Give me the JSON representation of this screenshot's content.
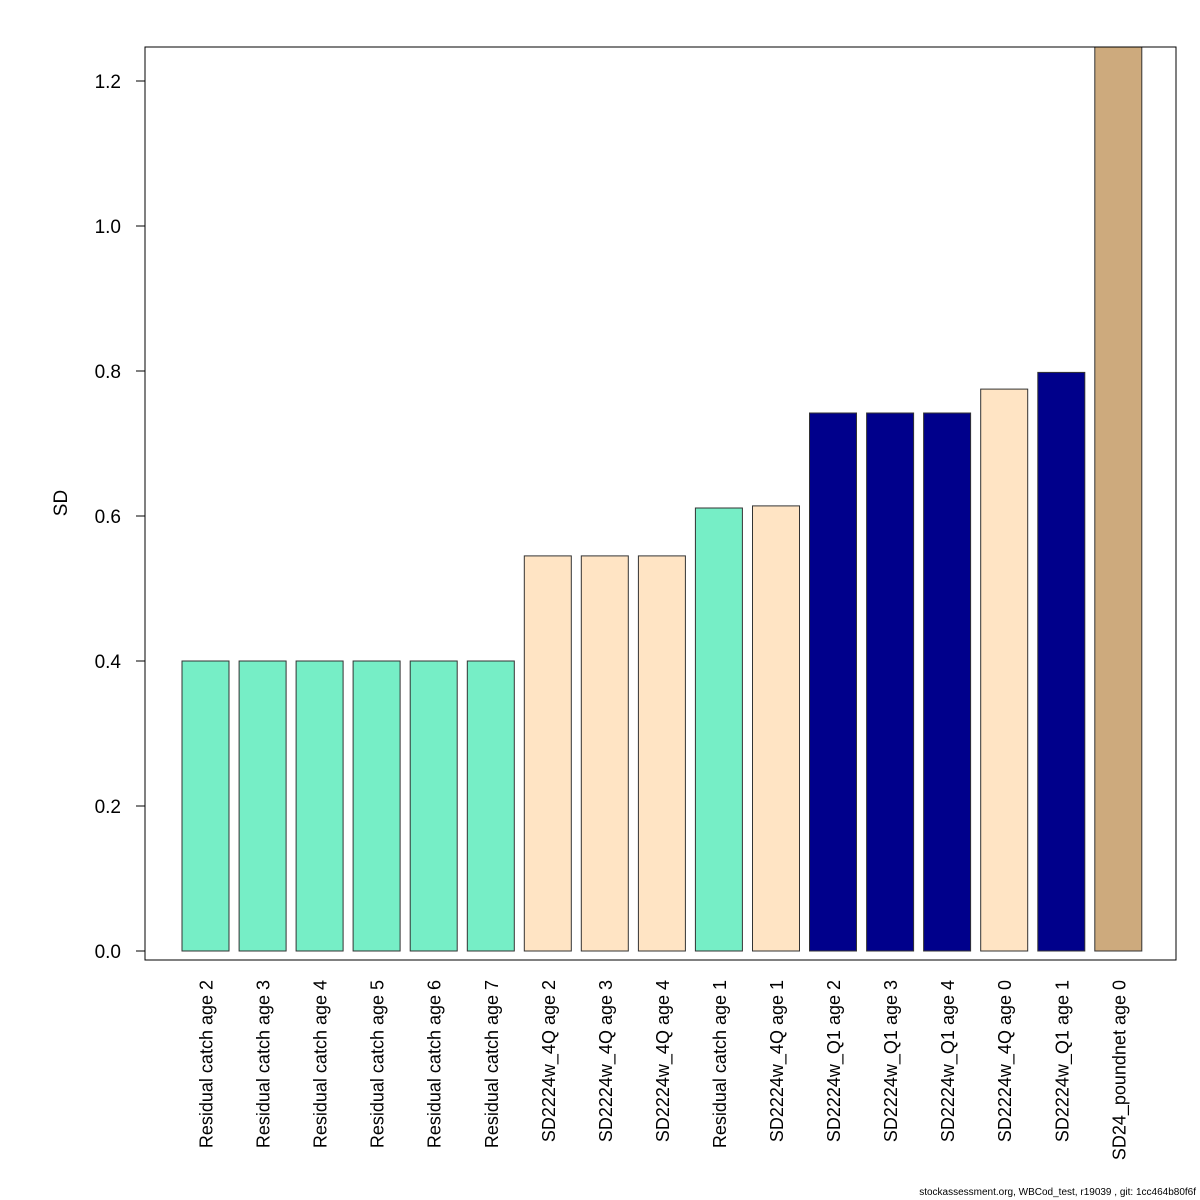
{
  "chart_data": {
    "type": "bar",
    "ylabel": "SD",
    "ylim": [
      0,
      1.25
    ],
    "yticks": [
      "0.0",
      "0.2",
      "0.4",
      "0.6",
      "0.8",
      "1.0",
      "1.2"
    ],
    "grid": false,
    "categories": [
      "Residual catch age 2",
      "Residual catch age 3",
      "Residual catch age 4",
      "Residual catch age 5",
      "Residual catch age 6",
      "Residual catch age 7",
      "SD2224w_4Q age 2",
      "SD2224w_4Q age 3",
      "SD2224w_4Q age 4",
      "Residual catch age 1",
      "SD2224w_4Q age 1",
      "SD2224w_Q1 age 2",
      "SD2224w_Q1 age 3",
      "SD2224w_Q1 age 4",
      "SD2224w_4Q age 0",
      "SD2224w_Q1 age 1",
      "SD24_poundnet age 0"
    ],
    "values": [
      0.4,
      0.4,
      0.4,
      0.4,
      0.4,
      0.4,
      0.545,
      0.545,
      0.545,
      0.611,
      0.614,
      0.742,
      0.742,
      0.742,
      0.775,
      0.798,
      1.25
    ],
    "colors": [
      "#76eec6",
      "#76eec6",
      "#76eec6",
      "#76eec6",
      "#76eec6",
      "#76eec6",
      "#ffe4c4",
      "#ffe4c4",
      "#ffe4c4",
      "#76eec6",
      "#ffe4c4",
      "#00008b",
      "#00008b",
      "#00008b",
      "#ffe4c4",
      "#00008b",
      "#cdaa7d"
    ]
  },
  "footer": "stockassessment.org, WBCod_test, r19039 , git: 1cc464b80f6f"
}
